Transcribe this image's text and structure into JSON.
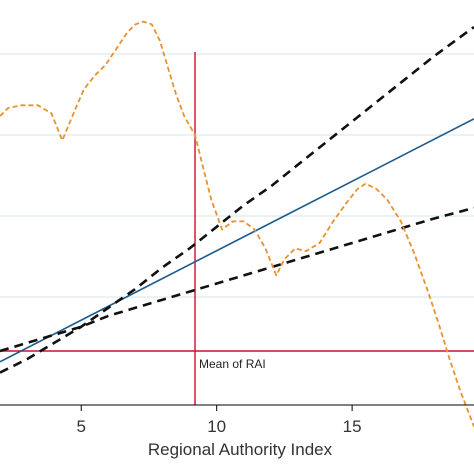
{
  "chart_data": {
    "type": "line",
    "xlabel": "Regional Authority Index",
    "ylabel": "",
    "xlim": [
      2,
      19.5
    ],
    "ylim": [
      -0.2,
      1.3
    ],
    "x_ticks": [
      5,
      10,
      15
    ],
    "x_tick_labels": [
      "5",
      "10",
      "15"
    ],
    "gridlines_y": [
      0.2,
      0.5,
      0.8,
      1.1
    ],
    "reference_lines": {
      "vertical_x": 9.2,
      "vertical_label": "Mean of RAI",
      "horizontal_y": 0.0
    },
    "series": [
      {
        "style": "solid",
        "color": "#1d5c8c",
        "x": [
          2,
          19.5
        ],
        "y": [
          -0.04,
          0.86
        ]
      },
      {
        "style": "dashed",
        "color": "#111111",
        "x": [
          2,
          3,
          4,
          5,
          6,
          7,
          8,
          9,
          10,
          11,
          12,
          13,
          14,
          15,
          16,
          17,
          18,
          19.5
        ],
        "y": [
          -0.08,
          -0.03,
          0.03,
          0.09,
          0.16,
          0.23,
          0.31,
          0.38,
          0.46,
          0.54,
          0.61,
          0.69,
          0.77,
          0.85,
          0.93,
          1.01,
          1.09,
          1.2
        ]
      },
      {
        "style": "dashed",
        "color": "#111111",
        "x": [
          2,
          3,
          4,
          5,
          6,
          7,
          8,
          9,
          10,
          11,
          12,
          13,
          14,
          15,
          16,
          17,
          18,
          19.5
        ],
        "y": [
          0.0,
          0.03,
          0.06,
          0.09,
          0.13,
          0.16,
          0.19,
          0.22,
          0.25,
          0.28,
          0.31,
          0.34,
          0.37,
          0.4,
          0.43,
          0.46,
          0.49,
          0.53
        ]
      },
      {
        "style": "dotted-dash",
        "color": "#e8912d",
        "x": [
          2,
          2.3,
          2.8,
          3.4,
          3.9,
          4.3,
          4.8,
          5.1,
          5.5,
          5.9,
          6.3,
          6.7,
          7.0,
          7.3,
          7.6,
          7.9,
          8.2,
          8.5,
          8.8,
          9.2,
          9.5,
          9.8,
          10.2,
          10.6,
          11.0,
          11.4,
          11.8,
          12.2,
          12.5,
          12.9,
          13.3,
          13.8,
          14.3,
          14.8,
          15.2,
          15.5,
          15.9,
          16.3,
          16.8,
          17.3,
          17.8,
          18.2,
          18.6,
          19.0,
          19.5
        ],
        "y": [
          0.87,
          0.9,
          0.91,
          0.91,
          0.88,
          0.78,
          0.9,
          0.97,
          1.02,
          1.06,
          1.12,
          1.18,
          1.21,
          1.22,
          1.21,
          1.15,
          1.05,
          0.95,
          0.87,
          0.8,
          0.68,
          0.56,
          0.45,
          0.48,
          0.48,
          0.45,
          0.38,
          0.28,
          0.34,
          0.38,
          0.37,
          0.4,
          0.48,
          0.55,
          0.6,
          0.62,
          0.6,
          0.56,
          0.48,
          0.36,
          0.22,
          0.1,
          -0.03,
          -0.15,
          -0.28
        ]
      }
    ]
  }
}
